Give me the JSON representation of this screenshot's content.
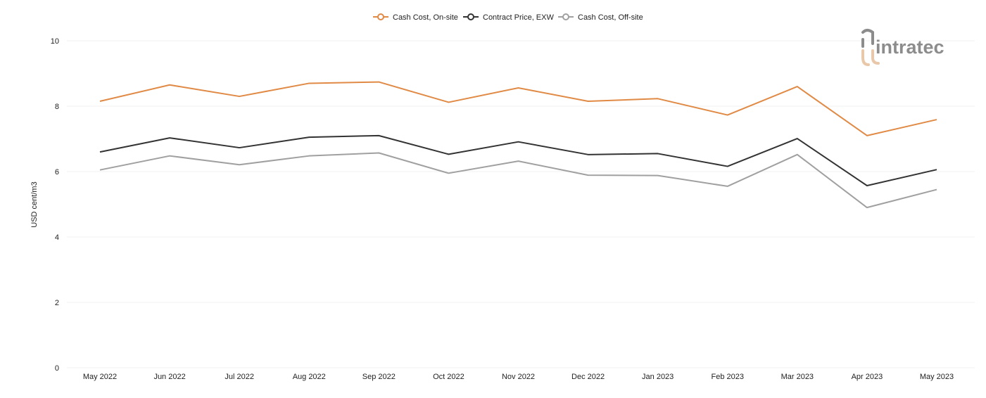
{
  "brand": {
    "name": "intratec",
    "color": "#8c8c8c",
    "accent": "#e9c8a9"
  },
  "chart_data": {
    "type": "line",
    "ylabel": "USD cent/m3",
    "ylim": [
      0,
      10
    ],
    "yticks": [
      0,
      2,
      4,
      6,
      8,
      10
    ],
    "grid": true,
    "legend_position": "top-center",
    "categories": [
      "May 2022",
      "Jun 2022",
      "Jul 2022",
      "Aug 2022",
      "Sep 2022",
      "Oct 2022",
      "Nov 2022",
      "Dec 2022",
      "Jan 2023",
      "Feb 2023",
      "Mar 2023",
      "Apr 2023",
      "May 2023"
    ],
    "series": [
      {
        "name": "Cash Cost, On-site",
        "color": "#e08a45",
        "values": [
          8.15,
          8.65,
          8.3,
          8.7,
          8.74,
          8.12,
          8.56,
          8.15,
          8.23,
          7.73,
          8.6,
          7.1,
          7.59
        ]
      },
      {
        "name": "Contract Price, EXW",
        "color": "#333333",
        "values": [
          6.6,
          7.03,
          6.73,
          7.05,
          7.1,
          6.53,
          6.91,
          6.52,
          6.55,
          6.16,
          7.01,
          5.57,
          6.06
        ]
      },
      {
        "name": "Cash Cost, Off-site",
        "color": "#a0a0a0",
        "values": [
          6.05,
          6.48,
          6.21,
          6.48,
          6.57,
          5.95,
          6.32,
          5.89,
          5.88,
          5.55,
          6.52,
          4.9,
          5.45
        ]
      }
    ]
  }
}
